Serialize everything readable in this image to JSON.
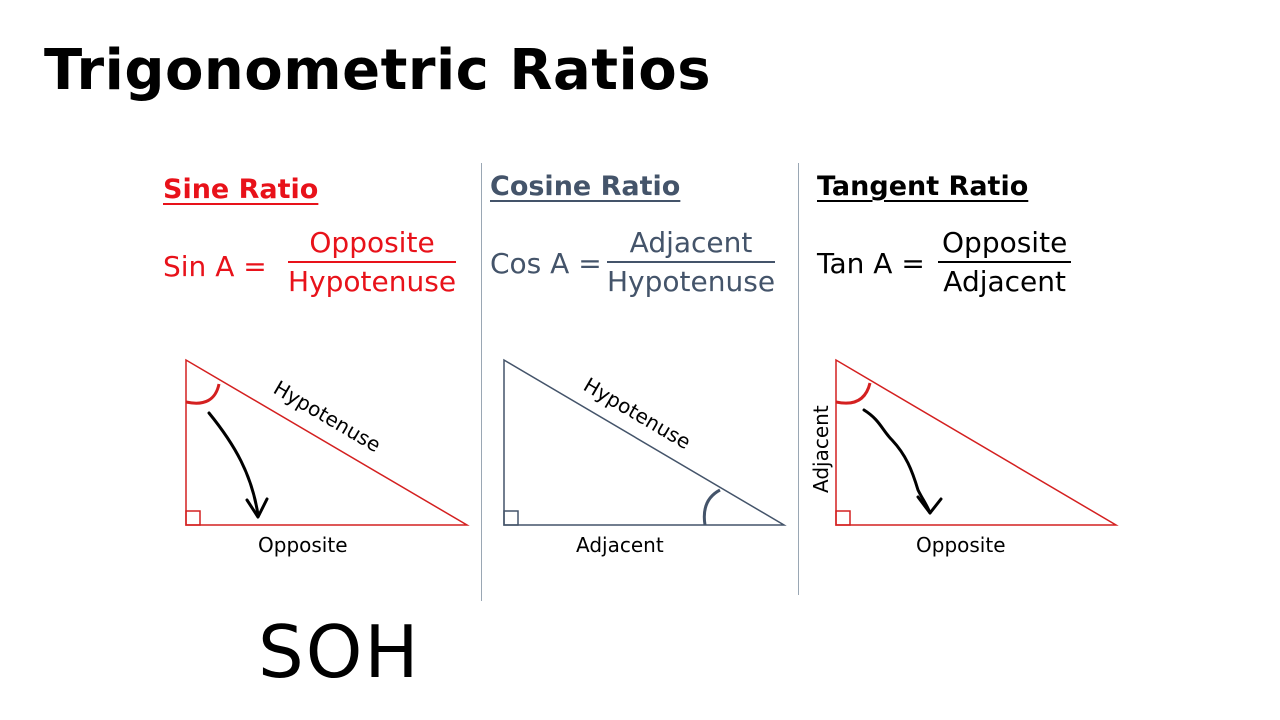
{
  "title": "Trigonometric Ratios",
  "colors": {
    "sine": "#e8121a",
    "cosine": "#44546a",
    "tangent": "#000000",
    "triangle_red": "#d42020"
  },
  "panels": [
    {
      "heading": "Sine Ratio",
      "lhs": "Sin A =",
      "numerator": "Opposite",
      "denominator": "Hypotenuse",
      "labels": {
        "hypotenuse": "Hypotenuse",
        "bottom": "Opposite"
      }
    },
    {
      "heading": "Cosine Ratio",
      "lhs": "Cos A =",
      "numerator": "Adjacent",
      "denominator": "Hypotenuse",
      "labels": {
        "hypotenuse": "Hypotenuse",
        "bottom": "Adjacent"
      }
    },
    {
      "heading": "Tangent Ratio",
      "lhs": "Tan A =",
      "numerator": "Opposite",
      "denominator": "Adjacent",
      "labels": {
        "side": "Adjacent",
        "bottom": "Opposite"
      }
    }
  ],
  "mnemonic": "SOH"
}
